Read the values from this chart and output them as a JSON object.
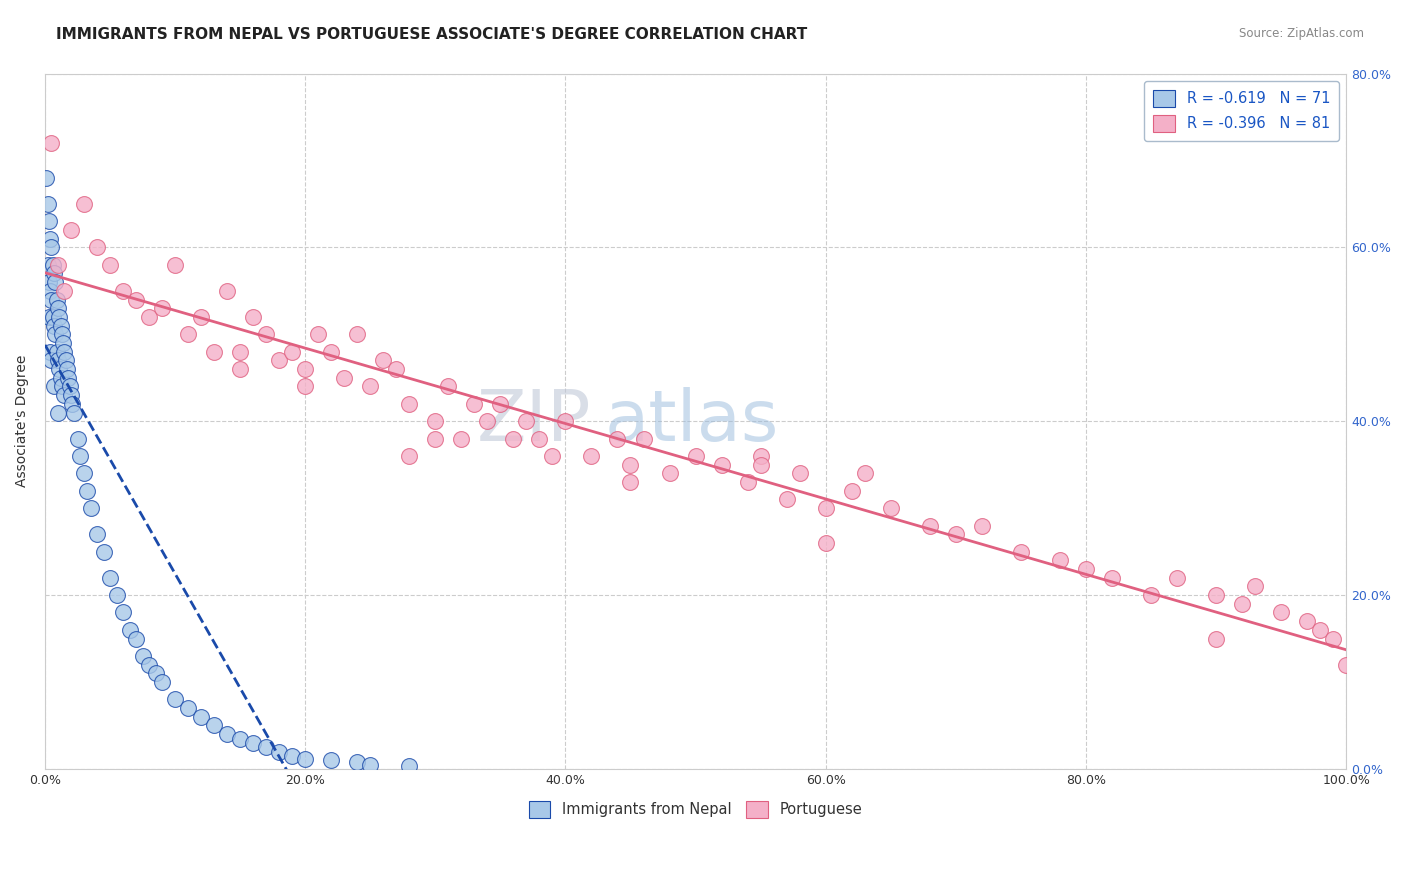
{
  "title": "IMMIGRANTS FROM NEPAL VS PORTUGUESE ASSOCIATE'S DEGREE CORRELATION CHART",
  "source": "Source: ZipAtlas.com",
  "ylabel": "Associate's Degree",
  "legend_labels": [
    "Immigrants from Nepal",
    "Portuguese"
  ],
  "r_nepal": -0.619,
  "n_nepal": 71,
  "r_portuguese": -0.396,
  "n_portuguese": 81,
  "color_nepal": "#a8c8e8",
  "color_portuguese": "#f4b0c8",
  "line_color_nepal": "#1a4aaa",
  "line_color_portuguese": "#e06080",
  "background_color": "#ffffff",
  "grid_color": "#cccccc",
  "watermark": "ZIPatlas",
  "watermark_color_zip": "#bbbbcc",
  "watermark_color_atlas": "#99bbdd",
  "xmin": 0.0,
  "xmax": 100.0,
  "ymin": 0.0,
  "ymax": 80.0,
  "nepal_x": [
    0.1,
    0.2,
    0.2,
    0.3,
    0.3,
    0.3,
    0.4,
    0.4,
    0.4,
    0.5,
    0.5,
    0.5,
    0.6,
    0.6,
    0.7,
    0.7,
    0.7,
    0.8,
    0.8,
    0.9,
    0.9,
    1.0,
    1.0,
    1.0,
    1.1,
    1.1,
    1.2,
    1.2,
    1.3,
    1.3,
    1.4,
    1.5,
    1.5,
    1.6,
    1.7,
    1.8,
    1.9,
    2.0,
    2.1,
    2.2,
    2.5,
    2.7,
    3.0,
    3.2,
    3.5,
    4.0,
    4.5,
    5.0,
    5.5,
    6.0,
    6.5,
    7.0,
    7.5,
    8.0,
    8.5,
    9.0,
    10.0,
    11.0,
    12.0,
    13.0,
    14.0,
    15.0,
    16.0,
    17.0,
    18.0,
    19.0,
    20.0,
    22.0,
    24.0,
    25.0,
    28.0
  ],
  "nepal_y": [
    68.0,
    65.0,
    58.0,
    63.0,
    56.0,
    52.0,
    61.0,
    55.0,
    48.0,
    60.0,
    54.0,
    47.0,
    58.0,
    52.0,
    57.0,
    51.0,
    44.0,
    56.0,
    50.0,
    54.0,
    48.0,
    53.0,
    47.0,
    41.0,
    52.0,
    46.0,
    51.0,
    45.0,
    50.0,
    44.0,
    49.0,
    48.0,
    43.0,
    47.0,
    46.0,
    45.0,
    44.0,
    43.0,
    42.0,
    41.0,
    38.0,
    36.0,
    34.0,
    32.0,
    30.0,
    27.0,
    25.0,
    22.0,
    20.0,
    18.0,
    16.0,
    15.0,
    13.0,
    12.0,
    11.0,
    10.0,
    8.0,
    7.0,
    6.0,
    5.0,
    4.0,
    3.5,
    3.0,
    2.5,
    2.0,
    1.5,
    1.2,
    1.0,
    0.8,
    0.5,
    0.3
  ],
  "portuguese_x": [
    0.5,
    1.0,
    1.5,
    2.0,
    3.0,
    4.0,
    5.0,
    6.0,
    7.0,
    8.0,
    9.0,
    10.0,
    11.0,
    12.0,
    13.0,
    14.0,
    15.0,
    16.0,
    17.0,
    18.0,
    19.0,
    20.0,
    21.0,
    22.0,
    23.0,
    24.0,
    25.0,
    26.0,
    27.0,
    28.0,
    30.0,
    31.0,
    32.0,
    33.0,
    34.0,
    35.0,
    36.0,
    37.0,
    38.0,
    39.0,
    40.0,
    42.0,
    44.0,
    45.0,
    46.0,
    48.0,
    50.0,
    52.0,
    54.0,
    55.0,
    57.0,
    58.0,
    60.0,
    62.0,
    63.0,
    65.0,
    68.0,
    70.0,
    72.0,
    75.0,
    78.0,
    80.0,
    82.0,
    85.0,
    87.0,
    90.0,
    92.0,
    93.0,
    95.0,
    97.0,
    98.0,
    99.0,
    100.0,
    55.0,
    30.0,
    28.0,
    20.0,
    15.0,
    45.0,
    60.0,
    90.0
  ],
  "portuguese_y": [
    72.0,
    58.0,
    55.0,
    62.0,
    65.0,
    60.0,
    58.0,
    55.0,
    54.0,
    52.0,
    53.0,
    58.0,
    50.0,
    52.0,
    48.0,
    55.0,
    48.0,
    52.0,
    50.0,
    47.0,
    48.0,
    46.0,
    50.0,
    48.0,
    45.0,
    50.0,
    44.0,
    47.0,
    46.0,
    42.0,
    40.0,
    44.0,
    38.0,
    42.0,
    40.0,
    42.0,
    38.0,
    40.0,
    38.0,
    36.0,
    40.0,
    36.0,
    38.0,
    35.0,
    38.0,
    34.0,
    36.0,
    35.0,
    33.0,
    36.0,
    31.0,
    34.0,
    30.0,
    32.0,
    34.0,
    30.0,
    28.0,
    27.0,
    28.0,
    25.0,
    24.0,
    23.0,
    22.0,
    20.0,
    22.0,
    20.0,
    19.0,
    21.0,
    18.0,
    17.0,
    16.0,
    15.0,
    12.0,
    35.0,
    38.0,
    36.0,
    44.0,
    46.0,
    33.0,
    26.0,
    15.0
  ],
  "title_fontsize": 11,
  "axis_label_fontsize": 10,
  "tick_fontsize": 9,
  "source_fontsize": 8.5
}
